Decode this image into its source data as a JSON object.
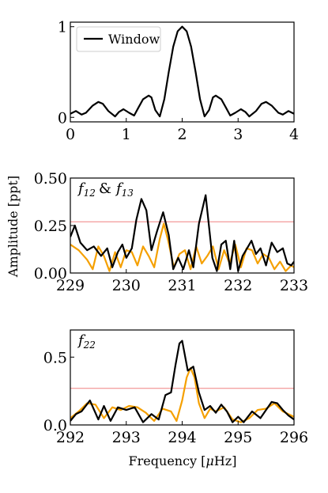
{
  "axes": {
    "ylabel": "Amplitude [ppt]",
    "xlabel_prefix": "Frequency [",
    "xlabel_mu": "μ",
    "xlabel_suffix": "Hz]"
  },
  "chart_data": [
    {
      "type": "line",
      "panel": "window",
      "xlim": [
        0,
        4
      ],
      "ylim": [
        -0.05,
        1.05
      ],
      "xticks": [
        "0",
        "1",
        "2",
        "3",
        "4"
      ],
      "yticks": [
        {
          "v": 0,
          "label": "0"
        },
        {
          "v": 1,
          "label": "1"
        }
      ],
      "legend": {
        "label": "Window",
        "placement": "top-left"
      },
      "series": [
        {
          "name": "Window",
          "color": "#000000",
          "x": [
            0.0,
            0.1,
            0.2,
            0.28,
            0.4,
            0.5,
            0.58,
            0.68,
            0.8,
            0.87,
            0.95,
            1.05,
            1.14,
            1.22,
            1.3,
            1.4,
            1.45,
            1.52,
            1.6,
            1.68,
            1.76,
            1.84,
            1.92,
            2.0,
            2.08,
            2.16,
            2.24,
            2.32,
            2.4,
            2.48,
            2.55,
            2.6,
            2.7,
            2.78,
            2.86,
            2.95,
            3.05,
            3.13,
            3.2,
            3.32,
            3.42,
            3.5,
            3.6,
            3.72,
            3.8,
            3.9,
            4.0
          ],
          "y": [
            0.04,
            0.07,
            0.03,
            0.05,
            0.13,
            0.17,
            0.15,
            0.07,
            0.01,
            0.06,
            0.09,
            0.05,
            0.02,
            0.11,
            0.2,
            0.24,
            0.22,
            0.08,
            0.01,
            0.2,
            0.5,
            0.78,
            0.95,
            1.0,
            0.95,
            0.78,
            0.5,
            0.2,
            0.01,
            0.08,
            0.22,
            0.24,
            0.2,
            0.11,
            0.02,
            0.05,
            0.09,
            0.06,
            0.01,
            0.07,
            0.15,
            0.17,
            0.13,
            0.05,
            0.03,
            0.07,
            0.04
          ]
        }
      ]
    },
    {
      "type": "line",
      "panel": "f12_f13",
      "annotation": {
        "base1": "f",
        "sub1": "12",
        "amp": "&",
        "base2": "f",
        "sub2": "13"
      },
      "xlim": [
        229,
        233
      ],
      "ylim": [
        0,
        0.5
      ],
      "xticks": [
        "229",
        "230",
        "231",
        "232",
        "233"
      ],
      "yticks": [
        {
          "v": 0,
          "label": "0.00"
        },
        {
          "v": 0.25,
          "label": "0.25"
        },
        {
          "v": 0.5,
          "label": "0.50"
        }
      ],
      "threshold": 0.27,
      "series": [
        {
          "color": "#000000",
          "x": [
            229.0,
            229.08,
            229.18,
            229.3,
            229.42,
            229.55,
            229.66,
            229.75,
            229.85,
            229.93,
            230.0,
            230.1,
            230.18,
            230.27,
            230.36,
            230.45,
            230.55,
            230.66,
            230.76,
            230.84,
            230.93,
            231.02,
            231.12,
            231.2,
            231.3,
            231.42,
            231.54,
            231.62,
            231.7,
            231.78,
            231.86,
            231.93,
            232.0,
            232.08,
            232.16,
            232.24,
            232.32,
            232.4,
            232.5,
            232.6,
            232.7,
            232.8,
            232.88,
            232.95,
            233.0
          ],
          "y": [
            0.19,
            0.25,
            0.16,
            0.12,
            0.14,
            0.09,
            0.13,
            0.03,
            0.11,
            0.15,
            0.08,
            0.13,
            0.28,
            0.39,
            0.33,
            0.12,
            0.22,
            0.32,
            0.2,
            0.02,
            0.08,
            0.02,
            0.12,
            0.03,
            0.26,
            0.41,
            0.08,
            0.01,
            0.15,
            0.17,
            0.02,
            0.17,
            0.01,
            0.09,
            0.13,
            0.17,
            0.1,
            0.13,
            0.04,
            0.16,
            0.11,
            0.13,
            0.05,
            0.04,
            0.06
          ]
        },
        {
          "color": "#f5a000",
          "x": [
            229.0,
            229.15,
            229.3,
            229.4,
            229.5,
            229.6,
            229.7,
            229.8,
            229.9,
            230.0,
            230.1,
            230.2,
            230.3,
            230.4,
            230.5,
            230.6,
            230.67,
            230.75,
            230.85,
            230.95,
            231.05,
            231.15,
            231.25,
            231.35,
            231.45,
            231.55,
            231.65,
            231.75,
            231.85,
            231.95,
            232.05,
            232.15,
            232.25,
            232.35,
            232.45,
            232.55,
            232.65,
            232.75,
            232.85,
            232.95,
            233.0
          ],
          "y": [
            0.15,
            0.12,
            0.07,
            0.02,
            0.14,
            0.09,
            0.01,
            0.11,
            0.03,
            0.12,
            0.11,
            0.04,
            0.14,
            0.09,
            0.03,
            0.18,
            0.26,
            0.17,
            0.03,
            0.1,
            0.12,
            0.02,
            0.14,
            0.05,
            0.09,
            0.14,
            0.02,
            0.12,
            0.05,
            0.15,
            0.03,
            0.13,
            0.12,
            0.05,
            0.1,
            0.08,
            0.02,
            0.06,
            0.01,
            0.04,
            0.03
          ]
        }
      ]
    },
    {
      "type": "line",
      "panel": "f22",
      "annotation": {
        "base1": "f",
        "sub1": "22"
      },
      "xlim": [
        292,
        296
      ],
      "ylim": [
        0,
        0.7
      ],
      "xticks": [
        "292",
        "293",
        "294",
        "295",
        "296"
      ],
      "yticks": [
        {
          "v": 0,
          "label": "0.0"
        },
        {
          "v": 0.5,
          "label": "0.5"
        }
      ],
      "threshold": 0.27,
      "series": [
        {
          "color": "#000000",
          "x": [
            292.0,
            292.1,
            292.2,
            292.35,
            292.5,
            292.6,
            292.72,
            292.85,
            293.0,
            293.15,
            293.3,
            293.45,
            293.58,
            293.7,
            293.8,
            293.88,
            293.95,
            294.0,
            294.1,
            294.2,
            294.3,
            294.4,
            294.5,
            294.6,
            294.7,
            294.8,
            294.9,
            295.0,
            295.1,
            295.25,
            295.4,
            295.5,
            295.6,
            295.7,
            295.8,
            295.9,
            296.0
          ],
          "y": [
            0.03,
            0.08,
            0.1,
            0.18,
            0.04,
            0.14,
            0.03,
            0.13,
            0.11,
            0.13,
            0.02,
            0.08,
            0.04,
            0.22,
            0.24,
            0.44,
            0.6,
            0.62,
            0.4,
            0.43,
            0.24,
            0.11,
            0.14,
            0.09,
            0.15,
            0.1,
            0.02,
            0.06,
            0.02,
            0.1,
            0.05,
            0.11,
            0.17,
            0.16,
            0.11,
            0.07,
            0.04
          ]
        },
        {
          "color": "#f5a000",
          "x": [
            292.0,
            292.15,
            292.3,
            292.45,
            292.6,
            292.75,
            292.9,
            293.05,
            293.2,
            293.35,
            293.5,
            293.65,
            293.8,
            293.9,
            294.0,
            294.08,
            294.15,
            294.22,
            294.3,
            294.4,
            294.5,
            294.6,
            294.75,
            294.9,
            295.05,
            295.2,
            295.35,
            295.5,
            295.65,
            295.8,
            296.0
          ],
          "y": [
            0.05,
            0.1,
            0.16,
            0.15,
            0.05,
            0.13,
            0.11,
            0.14,
            0.13,
            0.09,
            0.03,
            0.12,
            0.1,
            0.03,
            0.18,
            0.35,
            0.42,
            0.35,
            0.16,
            0.05,
            0.12,
            0.1,
            0.13,
            0.04,
            0.02,
            0.05,
            0.11,
            0.12,
            0.16,
            0.1,
            0.06
          ]
        }
      ]
    }
  ]
}
